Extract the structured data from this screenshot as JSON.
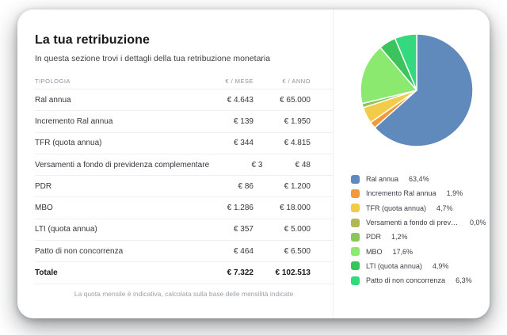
{
  "header": {
    "title": "La tua retribuzione",
    "subtitle": "In questa sezione trovi i dettagli della tua retribuzione monetaria"
  },
  "table": {
    "columns": {
      "type": "TIPOLOGIA",
      "monthly": "€ / MESE",
      "yearly": "€ / ANNO"
    },
    "rows": [
      {
        "label": "Ral annua",
        "monthly": "€ 4.643",
        "yearly": "€ 65.000"
      },
      {
        "label": "Incremento Ral annua",
        "monthly": "€ 139",
        "yearly": "€ 1.950"
      },
      {
        "label": "TFR (quota annua)",
        "monthly": "€ 344",
        "yearly": "€ 4.815"
      },
      {
        "label": "Versamenti a fondo di previdenza complementare",
        "monthly": "€ 3",
        "yearly": "€ 48"
      },
      {
        "label": "PDR",
        "monthly": "€ 86",
        "yearly": "€ 1.200"
      },
      {
        "label": "MBO",
        "monthly": "€ 1.286",
        "yearly": "€ 18.000"
      },
      {
        "label": "LTI (quota annua)",
        "monthly": "€ 357",
        "yearly": "€ 5.000"
      },
      {
        "label": "Patto di non concorrenza",
        "monthly": "€ 464",
        "yearly": "€ 6.500"
      }
    ],
    "total": {
      "label": "Totale",
      "monthly": "€ 7.322",
      "yearly": "€ 102.513"
    },
    "footnote": "La quota mensile è indicativa, calcolata sulla base delle mensilità indicate"
  },
  "chart_data": {
    "type": "pie",
    "start_angle_deg": -90,
    "direction": "clockwise",
    "legend_position": "below-right",
    "slices": [
      {
        "label": "Ral annua",
        "pct": 63.4,
        "pct_label": "63,4%",
        "color": "#6089BC"
      },
      {
        "label": "Incremento Ral annua",
        "pct": 1.9,
        "pct_label": "1,9%",
        "color": "#EF9A3B"
      },
      {
        "label": "TFR (quota annua)",
        "pct": 4.7,
        "pct_label": "4,7%",
        "color": "#F2CB49"
      },
      {
        "label": "Versamenti a fondo di previdenza c...",
        "pct": 0.0,
        "pct_label": "0,0%",
        "color": "#AFB854"
      },
      {
        "label": "PDR",
        "pct": 1.2,
        "pct_label": "1,2%",
        "color": "#8CC558"
      },
      {
        "label": "MBO",
        "pct": 17.6,
        "pct_label": "17,6%",
        "color": "#8BE970"
      },
      {
        "label": "LTI (quota annua)",
        "pct": 4.9,
        "pct_label": "4,9%",
        "color": "#3DC35B"
      },
      {
        "label": "Patto di non concorrenza",
        "pct": 6.3,
        "pct_label": "6,3%",
        "color": "#34D97E"
      }
    ]
  }
}
